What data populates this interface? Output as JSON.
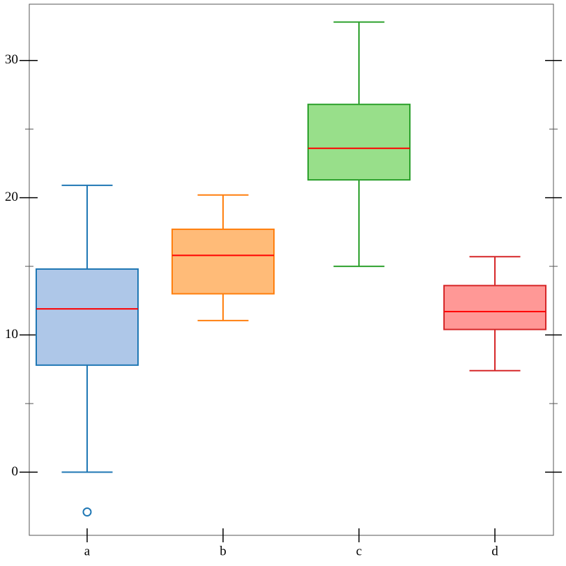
{
  "chart_data": {
    "type": "box",
    "categories": [
      "a",
      "b",
      "c",
      "d"
    ],
    "series": [
      {
        "name": "a",
        "color": "#1f77b4",
        "fill": "#aec7e8",
        "whislo": 0,
        "q1": 7.8,
        "med": 11.9,
        "q3": 14.8,
        "whishi": 20.9,
        "fliers": [
          -2.9
        ]
      },
      {
        "name": "b",
        "color": "#ff7f0e",
        "fill": "#ffbb78",
        "whislo": 11.05,
        "q1": 13.0,
        "med": 15.8,
        "q3": 17.7,
        "whishi": 20.2,
        "fliers": []
      },
      {
        "name": "c",
        "color": "#2ca02c",
        "fill": "#98df8a",
        "whislo": 15.0,
        "q1": 21.3,
        "med": 23.6,
        "q3": 26.8,
        "whishi": 32.8,
        "fliers": []
      },
      {
        "name": "d",
        "color": "#d62728",
        "fill": "#ff9896",
        "whislo": 7.4,
        "q1": 10.4,
        "med": 11.7,
        "q3": 13.6,
        "whishi": 15.7,
        "fliers": []
      }
    ],
    "median_color": "#ff0000",
    "ylim": [
      -4.6,
      34.1
    ],
    "yticks": [
      0,
      10,
      20,
      30
    ],
    "yminorticks": [
      5,
      15,
      25
    ]
  }
}
